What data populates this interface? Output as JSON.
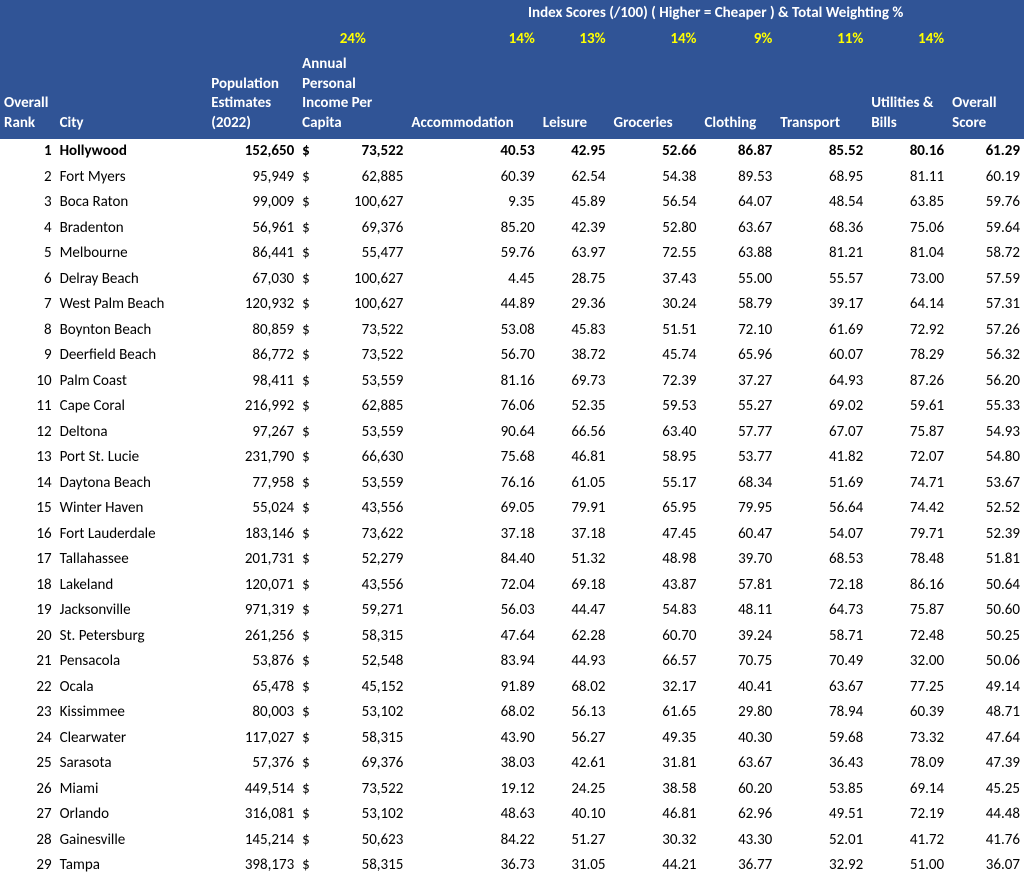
{
  "colors": {
    "header_bg": "#305496",
    "header_text": "#ffffff",
    "weight_text": "#ffff00",
    "body_text": "#000000",
    "body_bg": "#ffffff"
  },
  "typography": {
    "font_family": "Calibri",
    "body_fontsize_pt": 11,
    "header_fontsize_pt": 11
  },
  "header": {
    "index_title": "Index Scores (/100) ( Higher = Cheaper ) & Total Weighting %",
    "weights": {
      "income": "24%",
      "accommodation": "14%",
      "leisure": "13%",
      "groceries": "14%",
      "clothing": "9%",
      "transport": "11%",
      "utilities": "14%"
    },
    "labels": {
      "rank": "Overall Rank",
      "city": "City",
      "population": "Population Estimates (2022)",
      "income": "Annual Personal Income Per Capita",
      "accommodation": "Accommodation",
      "leisure": "Leisure",
      "groceries": "Groceries",
      "clothing": "Clothing",
      "transport": "Transport",
      "utilities": "Utilities & Bills",
      "overall": "Overall Score"
    }
  },
  "rows": [
    {
      "rank": 1,
      "city": "Hollywood",
      "pop": "152,650",
      "inc": "73,522",
      "acc": "40.53",
      "lei": "42.95",
      "gro": "52.66",
      "clo": "86.87",
      "tra": "85.52",
      "uti": "80.16",
      "ovr": "61.29",
      "bold": true
    },
    {
      "rank": 2,
      "city": "Fort Myers",
      "pop": "95,949",
      "inc": "62,885",
      "acc": "60.39",
      "lei": "62.54",
      "gro": "54.38",
      "clo": "89.53",
      "tra": "68.95",
      "uti": "81.11",
      "ovr": "60.19"
    },
    {
      "rank": 3,
      "city": "Boca Raton",
      "pop": "99,009",
      "inc": "100,627",
      "acc": "9.35",
      "lei": "45.89",
      "gro": "56.54",
      "clo": "64.07",
      "tra": "48.54",
      "uti": "63.85",
      "ovr": "59.76"
    },
    {
      "rank": 4,
      "city": "Bradenton",
      "pop": "56,961",
      "inc": "69,376",
      "acc": "85.20",
      "lei": "42.39",
      "gro": "52.80",
      "clo": "63.67",
      "tra": "68.36",
      "uti": "75.06",
      "ovr": "59.64"
    },
    {
      "rank": 5,
      "city": "Melbourne",
      "pop": "86,441",
      "inc": "55,477",
      "acc": "59.76",
      "lei": "63.97",
      "gro": "72.55",
      "clo": "63.88",
      "tra": "81.21",
      "uti": "81.04",
      "ovr": "58.72"
    },
    {
      "rank": 6,
      "city": "Delray Beach",
      "pop": "67,030",
      "inc": "100,627",
      "acc": "4.45",
      "lei": "28.75",
      "gro": "37.43",
      "clo": "55.00",
      "tra": "55.57",
      "uti": "73.00",
      "ovr": "57.59"
    },
    {
      "rank": 7,
      "city": "West Palm Beach",
      "pop": "120,932",
      "inc": "100,627",
      "acc": "44.89",
      "lei": "29.36",
      "gro": "30.24",
      "clo": "58.79",
      "tra": "39.17",
      "uti": "64.14",
      "ovr": "57.31"
    },
    {
      "rank": 8,
      "city": "Boynton Beach",
      "pop": "80,859",
      "inc": "73,522",
      "acc": "53.08",
      "lei": "45.83",
      "gro": "51.51",
      "clo": "72.10",
      "tra": "61.69",
      "uti": "72.92",
      "ovr": "57.26"
    },
    {
      "rank": 9,
      "city": "Deerfield Beach",
      "pop": "86,772",
      "inc": "73,522",
      "acc": "56.70",
      "lei": "38.72",
      "gro": "45.74",
      "clo": "65.96",
      "tra": "60.07",
      "uti": "78.29",
      "ovr": "56.32"
    },
    {
      "rank": 10,
      "city": "Palm Coast",
      "pop": "98,411",
      "inc": "53,559",
      "acc": "81.16",
      "lei": "69.73",
      "gro": "72.39",
      "clo": "37.27",
      "tra": "64.93",
      "uti": "87.26",
      "ovr": "56.20"
    },
    {
      "rank": 11,
      "city": "Cape Coral",
      "pop": "216,992",
      "inc": "62,885",
      "acc": "76.06",
      "lei": "52.35",
      "gro": "59.53",
      "clo": "55.27",
      "tra": "69.02",
      "uti": "59.61",
      "ovr": "55.33"
    },
    {
      "rank": 12,
      "city": "Deltona",
      "pop": "97,267",
      "inc": "53,559",
      "acc": "90.64",
      "lei": "66.56",
      "gro": "63.40",
      "clo": "57.77",
      "tra": "67.07",
      "uti": "75.87",
      "ovr": "54.93"
    },
    {
      "rank": 13,
      "city": "Port St. Lucie",
      "pop": "231,790",
      "inc": "66,630",
      "acc": "75.68",
      "lei": "46.81",
      "gro": "58.95",
      "clo": "53.77",
      "tra": "41.82",
      "uti": "72.07",
      "ovr": "54.80"
    },
    {
      "rank": 14,
      "city": "Daytona Beach",
      "pop": "77,958",
      "inc": "53,559",
      "acc": "76.16",
      "lei": "61.05",
      "gro": "55.17",
      "clo": "68.34",
      "tra": "51.69",
      "uti": "74.71",
      "ovr": "53.67"
    },
    {
      "rank": 15,
      "city": "Winter Haven",
      "pop": "55,024",
      "inc": "43,556",
      "acc": "69.05",
      "lei": "79.91",
      "gro": "65.95",
      "clo": "79.95",
      "tra": "56.64",
      "uti": "74.42",
      "ovr": "52.52"
    },
    {
      "rank": 16,
      "city": "Fort Lauderdale",
      "pop": "183,146",
      "inc": "73,622",
      "acc": "37.18",
      "lei": "37.18",
      "gro": "47.45",
      "clo": "60.47",
      "tra": "54.07",
      "uti": "79.71",
      "ovr": "52.39"
    },
    {
      "rank": 17,
      "city": "Tallahassee",
      "pop": "201,731",
      "inc": "52,279",
      "acc": "84.40",
      "lei": "51.32",
      "gro": "48.98",
      "clo": "39.70",
      "tra": "68.53",
      "uti": "78.48",
      "ovr": "51.81"
    },
    {
      "rank": 18,
      "city": "Lakeland",
      "pop": "120,071",
      "inc": "43,556",
      "acc": "72.04",
      "lei": "69.18",
      "gro": "43.87",
      "clo": "57.81",
      "tra": "72.18",
      "uti": "86.16",
      "ovr": "50.64"
    },
    {
      "rank": 19,
      "city": "Jacksonville",
      "pop": "971,319",
      "inc": "59,271",
      "acc": "56.03",
      "lei": "44.47",
      "gro": "54.83",
      "clo": "48.11",
      "tra": "64.73",
      "uti": "75.87",
      "ovr": "50.60"
    },
    {
      "rank": 20,
      "city": "St. Petersburg",
      "pop": "261,256",
      "inc": "58,315",
      "acc": "47.64",
      "lei": "62.28",
      "gro": "60.70",
      "clo": "39.24",
      "tra": "58.71",
      "uti": "72.48",
      "ovr": "50.25"
    },
    {
      "rank": 21,
      "city": "Pensacola",
      "pop": "53,876",
      "inc": "52,548",
      "acc": "83.94",
      "lei": "44.93",
      "gro": "66.57",
      "clo": "70.75",
      "tra": "70.49",
      "uti": "32.00",
      "ovr": "50.06"
    },
    {
      "rank": 22,
      "city": "Ocala",
      "pop": "65,478",
      "inc": "45,152",
      "acc": "91.89",
      "lei": "68.02",
      "gro": "32.17",
      "clo": "40.41",
      "tra": "63.67",
      "uti": "77.25",
      "ovr": "49.14"
    },
    {
      "rank": 23,
      "city": "Kissimmee",
      "pop": "80,003",
      "inc": "53,102",
      "acc": "68.02",
      "lei": "56.13",
      "gro": "61.65",
      "clo": "29.80",
      "tra": "78.94",
      "uti": "60.39",
      "ovr": "48.71"
    },
    {
      "rank": 24,
      "city": "Clearwater",
      "pop": "117,027",
      "inc": "58,315",
      "acc": "43.90",
      "lei": "56.27",
      "gro": "49.35",
      "clo": "40.30",
      "tra": "59.68",
      "uti": "73.32",
      "ovr": "47.64"
    },
    {
      "rank": 25,
      "city": "Sarasota",
      "pop": "57,376",
      "inc": "69,376",
      "acc": "38.03",
      "lei": "42.61",
      "gro": "31.81",
      "clo": "63.67",
      "tra": "36.43",
      "uti": "78.09",
      "ovr": "47.39"
    },
    {
      "rank": 26,
      "city": "Miami",
      "pop": "449,514",
      "inc": "73,522",
      "acc": "19.12",
      "lei": "24.25",
      "gro": "38.58",
      "clo": "60.20",
      "tra": "53.85",
      "uti": "69.14",
      "ovr": "45.25"
    },
    {
      "rank": 27,
      "city": "Orlando",
      "pop": "316,081",
      "inc": "53,102",
      "acc": "48.63",
      "lei": "40.10",
      "gro": "46.81",
      "clo": "62.96",
      "tra": "49.51",
      "uti": "72.19",
      "ovr": "44.48"
    },
    {
      "rank": 28,
      "city": "Gainesville",
      "pop": "145,214",
      "inc": "50,623",
      "acc": "84.22",
      "lei": "51.27",
      "gro": "30.32",
      "clo": "43.30",
      "tra": "52.01",
      "uti": "41.72",
      "ovr": "41.76"
    },
    {
      "rank": 29,
      "city": "Tampa",
      "pop": "398,173",
      "inc": "58,315",
      "acc": "36.73",
      "lei": "31.05",
      "gro": "44.21",
      "clo": "36.77",
      "tra": "32.92",
      "uti": "51.00",
      "ovr": "36.07"
    }
  ]
}
